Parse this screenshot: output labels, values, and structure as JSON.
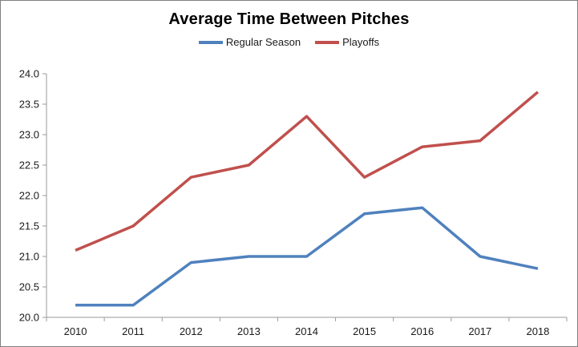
{
  "frame": {
    "background": "#ffffff",
    "border_color": "#7f7f7f"
  },
  "chart_data": {
    "type": "line",
    "title": "Average Time Between Pitches",
    "categories": [
      "2010",
      "2011",
      "2012",
      "2013",
      "2014",
      "2015",
      "2016",
      "2017",
      "2018"
    ],
    "series": [
      {
        "name": "Regular Season",
        "color": "#4F81BD",
        "values": [
          20.2,
          20.2,
          20.9,
          21.0,
          21.0,
          21.7,
          21.8,
          21.0,
          20.8
        ]
      },
      {
        "name": "Playoffs",
        "color": "#C0504D",
        "values": [
          21.1,
          21.5,
          22.3,
          22.5,
          23.3,
          22.3,
          22.8,
          22.9,
          23.7
        ]
      }
    ],
    "xlabel": "",
    "ylabel": "",
    "ylim": [
      20.0,
      24.0
    ],
    "ytick_step": 0.5,
    "ytick_labels": [
      "20.0",
      "20.5",
      "21.0",
      "21.5",
      "22.0",
      "22.5",
      "23.0",
      "23.5",
      "24.0"
    ],
    "legend_position": "top",
    "grid": false,
    "axis_color": "#9a9a9a",
    "tick_label_color": "#1a1a1a"
  }
}
